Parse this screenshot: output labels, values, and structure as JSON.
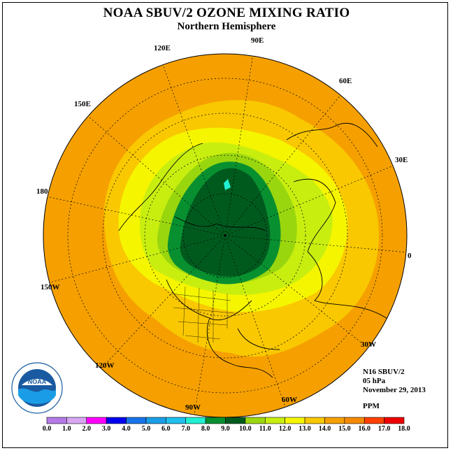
{
  "title": "NOAA SBUV/2 OZONE MIXING RATIO",
  "subtitle": "Northern Hemisphere",
  "longitude_labels": [
    "90E",
    "120E",
    "60E",
    "150E",
    "30E",
    "180",
    "0",
    "150W",
    "30W",
    "120W",
    "60W",
    "90W"
  ],
  "info": {
    "instrument": "N16 SBUV/2",
    "pressure": "05 hPa",
    "date": "November 29, 2013",
    "units": "PPM"
  },
  "logo": {
    "text": "NOAA",
    "ring_text": "NATIONAL OCEANIC AND ATMOSPHERIC ADMINISTRATION U.S. DEPARTMENT OF COMMERCE"
  },
  "colorbar": {
    "ticks": [
      "0.0",
      "1.0",
      "2.0",
      "3.0",
      "4.0",
      "5.0",
      "6.0",
      "7.0",
      "8.0",
      "9.0",
      "10.0",
      "11.0",
      "12.0",
      "13.0",
      "14.0",
      "15.0",
      "16.0",
      "17.0",
      "18.0"
    ],
    "colors": [
      "#b57ae6",
      "#d8a7f2",
      "#ff00ff",
      "#0000ee",
      "#1873e8",
      "#1a9de6",
      "#20c0ee",
      "#20f0d2",
      "#089030",
      "#005a1e",
      "#9ad60e",
      "#c8ee10",
      "#f5f500",
      "#f9c800",
      "#f5a000",
      "#f58a00",
      "#ff4000",
      "#ee0000",
      "#8b4513"
    ]
  }
}
